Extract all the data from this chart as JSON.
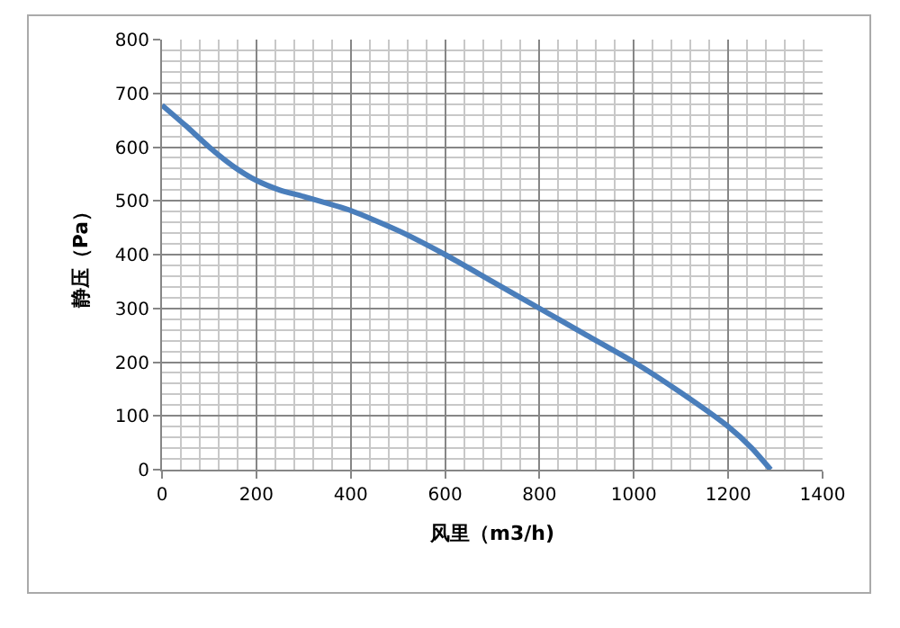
{
  "chart_data": {
    "type": "line",
    "xlabel": "风里（m3/h)",
    "ylabel": "静压（Pa）",
    "x": [
      0,
      50,
      100,
      150,
      200,
      250,
      300,
      400,
      500,
      600,
      700,
      800,
      900,
      1000,
      1100,
      1200,
      1250,
      1290
    ],
    "series": [
      {
        "color": "#4a7ebb",
        "values": [
          678,
          640,
          600,
          565,
          538,
          520,
          508,
          482,
          445,
          400,
          350,
          300,
          250,
          200,
          143,
          80,
          40,
          0
        ]
      }
    ],
    "xlim": [
      0,
      1400
    ],
    "xticks": [
      0,
      200,
      400,
      600,
      800,
      1000,
      1200,
      1400
    ],
    "ylim": [
      0,
      800
    ],
    "yticks": [
      0,
      100,
      200,
      300,
      400,
      500,
      600,
      700,
      800
    ],
    "grid": true,
    "marker": "none",
    "line_style": "solid"
  }
}
